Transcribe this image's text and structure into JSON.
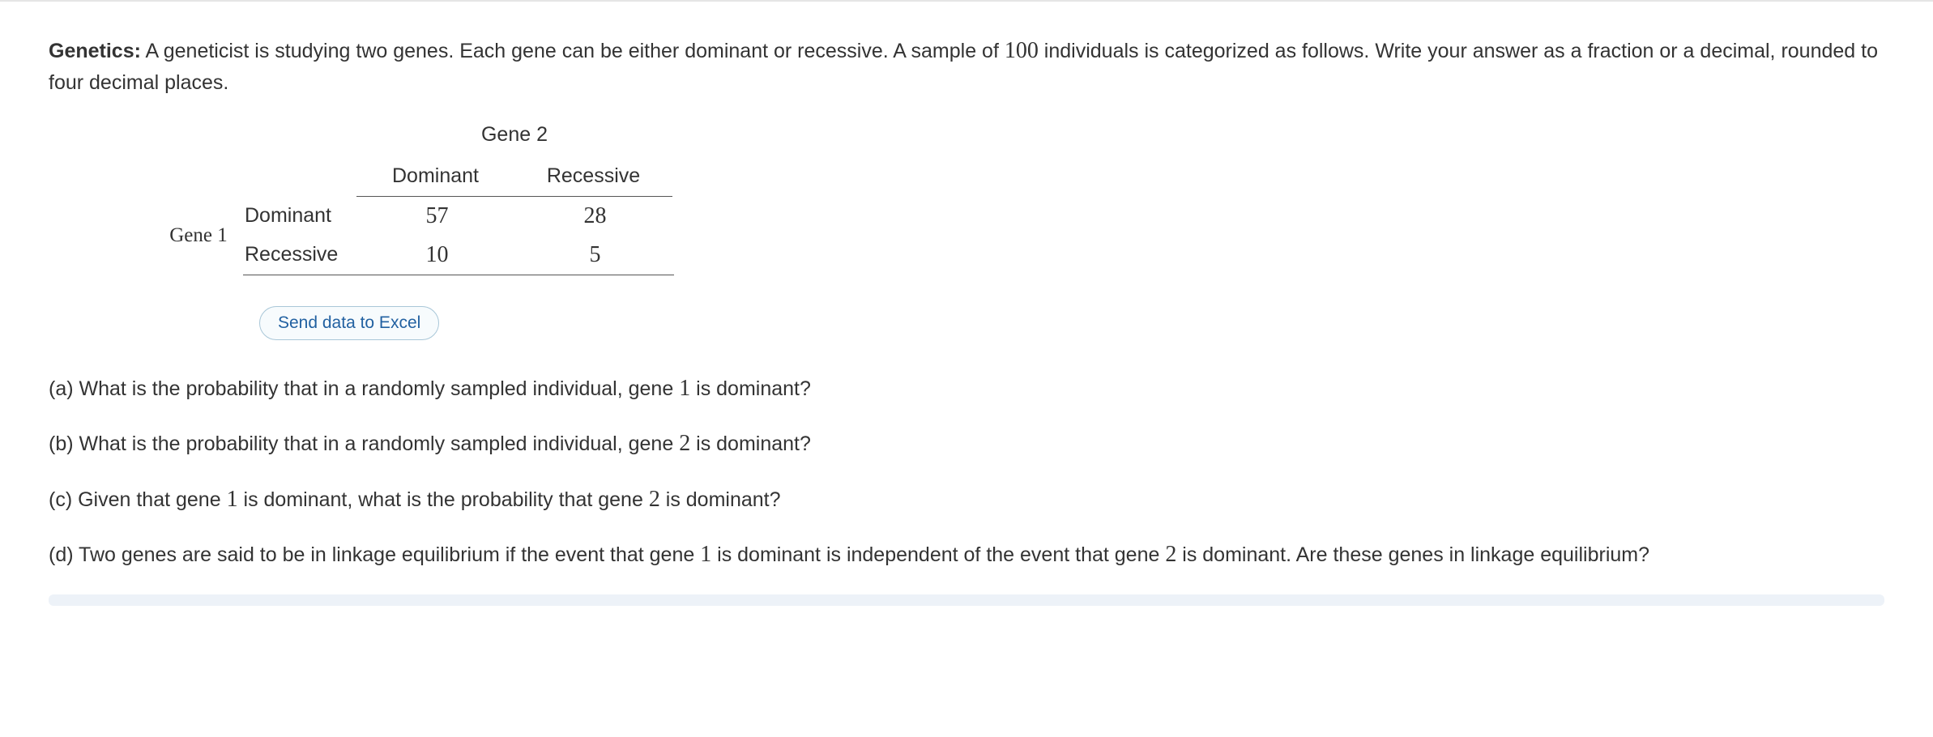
{
  "intro": {
    "label": "Genetics:",
    "text_before": " A geneticist is studying two genes. Each gene can be either dominant or recessive. A sample of ",
    "sample_size": "100",
    "text_after": " individuals is categorized as follows. Write your answer as a fraction or a decimal, rounded to four decimal places."
  },
  "table": {
    "col_group_label": "Gene 2",
    "row_group_label": "Gene 1",
    "columns": [
      "Dominant",
      "Recessive"
    ],
    "rows": [
      {
        "label": "Dominant",
        "values": [
          "57",
          "28"
        ]
      },
      {
        "label": "Recessive",
        "values": [
          "10",
          "5"
        ]
      }
    ],
    "border_color": "#555555",
    "font_size": 25,
    "num_font_family": "Times New Roman"
  },
  "excel_button": {
    "label": "Send data to Excel",
    "text_color": "#2261a1",
    "border_color": "#a9c7d8",
    "background_color": "#f7fbfd"
  },
  "questions": {
    "a": {
      "prefix": "(a) What is the probability that in a randomly sampled individual, gene ",
      "num": "1",
      "suffix": " is dominant?"
    },
    "b": {
      "prefix": "(b) What is the probability that in a randomly sampled individual, gene ",
      "num": "2",
      "suffix": " is dominant?"
    },
    "c": {
      "prefix": "(c) Given that gene ",
      "num1": "1",
      "mid": " is dominant, what is the probability that gene ",
      "num2": "2",
      "suffix": " is dominant?"
    },
    "d": {
      "prefix": "(d) Two genes are said to be in linkage equilibrium if the event that gene ",
      "num1": "1",
      "mid": " is dominant is independent of the event that gene ",
      "num2": "2",
      "suffix": " is dominant. Are these genes in linkage equilibrium?"
    }
  },
  "colors": {
    "background": "#ffffff",
    "text": "#333333",
    "top_border": "#e5e5e5",
    "scroll_track": "#edf2f8"
  }
}
